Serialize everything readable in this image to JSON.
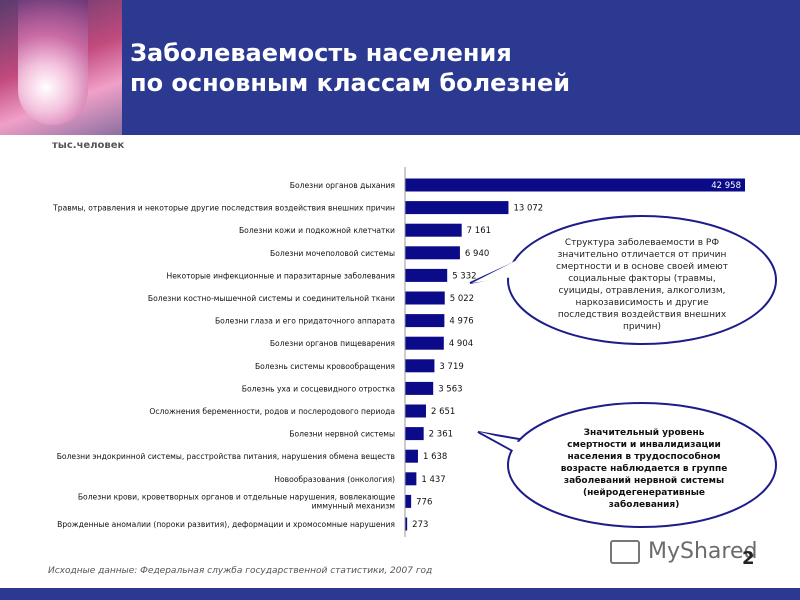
{
  "header": {
    "title_line1": "Заболеваемость населения",
    "title_line2": "по основным классам болезней"
  },
  "units_label": "тыс.человек",
  "colors": {
    "bar": "#0b0b8a",
    "header": "#2b3990",
    "bubble_border": "#1c1c8a"
  },
  "chart_data": {
    "type": "bar",
    "orientation": "horizontal",
    "categories": [
      "Болезни органов дыхания",
      "Травмы, отравления и некоторые другие последствия воздействия внешних причин",
      "Болезни кожи и подкожной клетчатки",
      "Болезни мочеполовой системы",
      "Некоторые инфекционные и паразитарные заболевания",
      "Болезни костно-мышечной системы и соединительной ткани",
      "Болезни глаза и его придаточного аппарата",
      "Болезни органов пищеварения",
      "Болезнь системы кровообращения",
      "Болезнь уха и сосцевидного отростка",
      "Осложнения беременности, родов и послеродового периода",
      "Болезни нервной системы",
      "Болезни эндокринной системы, расстройства питания, нарушения обмена веществ",
      "Новообразования (онкология)",
      "Болезни крови, кроветворных органов и отдельные нарушения, вовлекающие иммунный механизм",
      "Врожденные аномалии (пороки развития), деформации и хромосомные нарушения"
    ],
    "values": [
      42958,
      13072,
      7161,
      6940,
      5332,
      5022,
      4976,
      4904,
      3719,
      3563,
      2651,
      2361,
      1638,
      1437,
      776,
      273
    ],
    "value_labels": [
      "42 958",
      "13 072",
      "7 161",
      "6 940",
      "5 332",
      "5 022",
      "4 976",
      "4 904",
      "3 719",
      "3 563",
      "2 651",
      "2 361",
      "1 638",
      "1 437",
      "776",
      "273"
    ],
    "xlim": [
      0,
      42958
    ]
  },
  "callouts": [
    "Структура заболеваемости в РФ значительно отличается от причин смертности и в основе своей имеют социальные факторы (травмы, суициды, отравления, алкоголизм, наркозависимость и другие последствия воздействия внешних причин)",
    "Значительный уровень смертности и инвалидизации населения в трудоспособном возрасте наблюдается в группе заболеваний нервной системы (нейродегенеративные заболевания)"
  ],
  "source": "Исходные данные: Федеральная служба государственной статистики, 2007 год",
  "logo": "MyShared",
  "page_number": "2"
}
